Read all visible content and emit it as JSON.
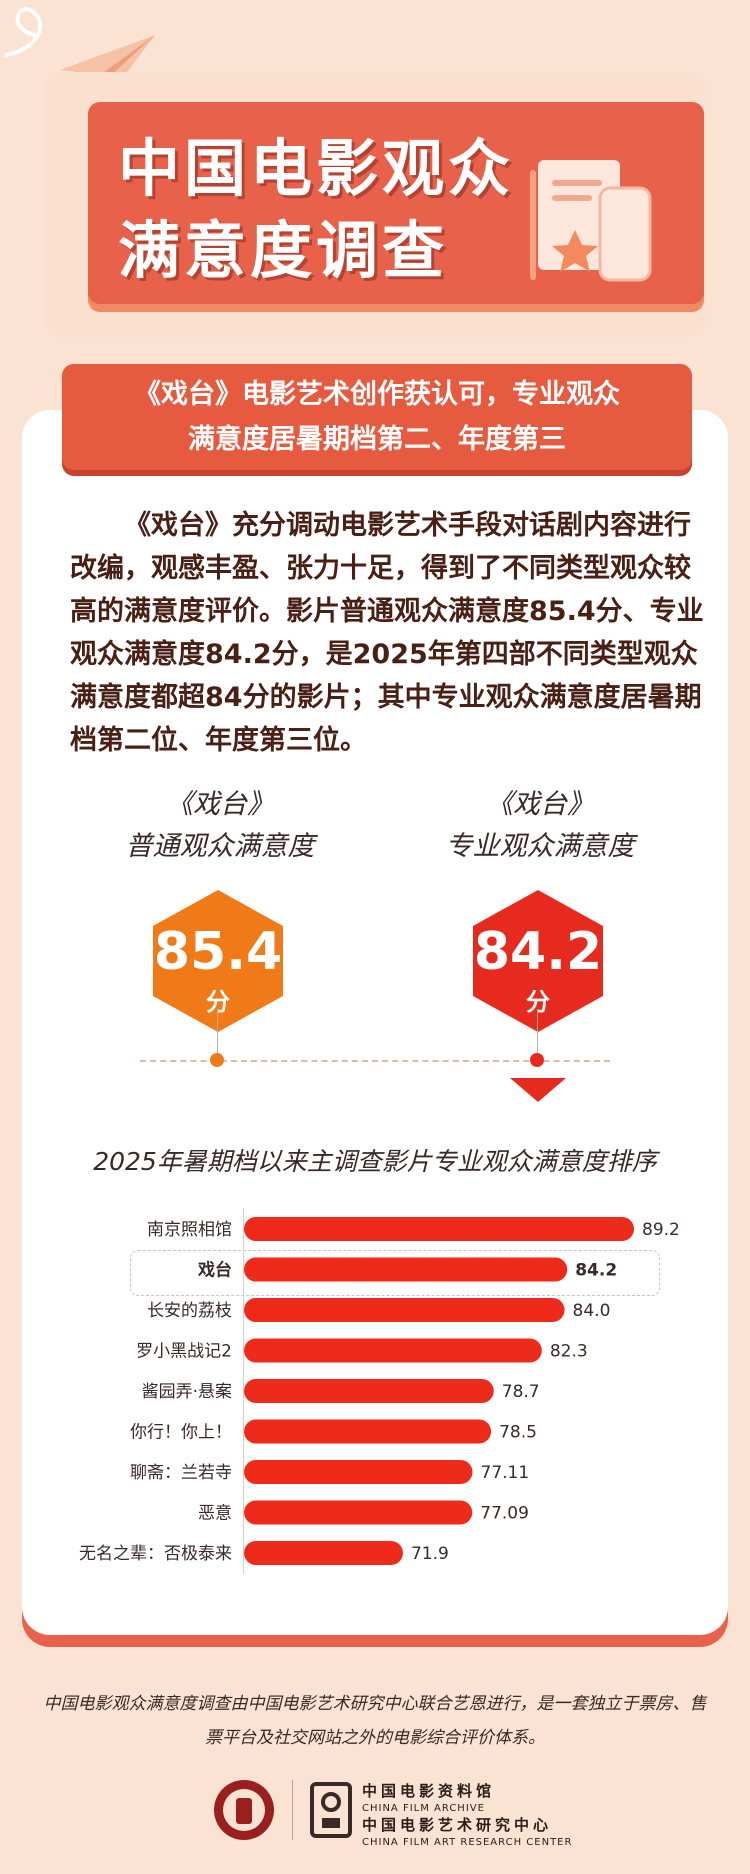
{
  "header": {
    "title_line1": "中国电影观众",
    "title_line2": "满意度调查"
  },
  "banner": {
    "line1": "《戏台》电影艺术创作获认可，专业观众",
    "line2": "满意度居暑期档第二、年度第三"
  },
  "intro": "《戏台》充分调动电影艺术手段对话剧内容进行改编，观感丰盈、张力十足，得到了不同类型观众较高的满意度评价。影片普通观众满意度85.4分、专业观众满意度84.2分，是2025年第四部不同类型观众满意度都超84分的影片；其中专业观众满意度居暑期档第二位、年度第三位。",
  "scores": [
    {
      "film": "《戏台》",
      "label": "普通观众满意度",
      "value": "85.4",
      "unit": "分",
      "color": "#f07a18"
    },
    {
      "film": "《戏台》",
      "label": "专业观众满意度",
      "value": "84.2",
      "unit": "分",
      "color": "#e62a1e"
    }
  ],
  "chart_data": {
    "type": "bar",
    "orientation": "horizontal",
    "title": "2025年暑期档以来主调查影片专业观众满意度排序",
    "categories": [
      "南京照相馆",
      "戏台",
      "长安的荔枝",
      "罗小黑战记2",
      "酱园弄·悬案",
      "你行！你上！",
      "聊斋：兰若寺",
      "恶意",
      "无名之辈：否极泰来"
    ],
    "value_labels": [
      "89.2",
      "84.2",
      "84.0",
      "82.3",
      "78.7",
      "78.5",
      "77.11",
      "77.09",
      "71.9"
    ],
    "values": [
      89.2,
      84.2,
      84.0,
      82.3,
      78.7,
      78.5,
      77.11,
      77.09,
      71.9
    ],
    "highlight": "戏台",
    "bar_color": "#ee2a1b"
  },
  "footer": {
    "text": "中国电影观众满意度调查由中国电影艺术研究中心联合艺恩进行，是一套独立于票房、售票平台及社交网站之外的电影综合评价体系。",
    "org1_zh": "中国电影资料馆",
    "org1_en": "CHINA FILM ARCHIVE",
    "org2_zh": "中国电影艺术研究中心",
    "org2_en": "CHINA FILM ART RESEARCH CENTER"
  },
  "colors": {
    "accent": "#e8614a",
    "background": "#fbe3d3",
    "bar": "#ee2a1b",
    "orange": "#f07a18"
  }
}
